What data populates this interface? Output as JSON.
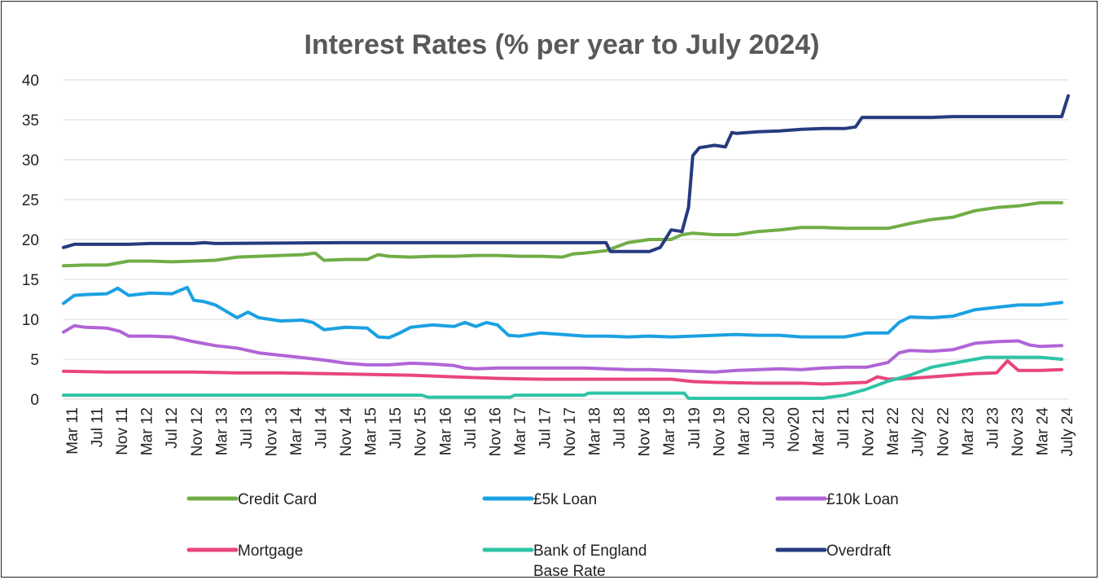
{
  "chart_data": {
    "type": "line",
    "title": "Interest Rates (% per year to July 2024)",
    "xlabel": "",
    "ylabel": "",
    "ylim": [
      0,
      40
    ],
    "yticks": [
      0,
      5,
      10,
      15,
      20,
      25,
      30,
      35,
      40
    ],
    "grid": true,
    "legend_position": "bottom",
    "x_tick_labels": [
      "Mar 11",
      "Jul 11",
      "Nov 11",
      "Mar 12",
      "Jul 12",
      "Nov 12",
      "Mar 13",
      "Jul 13",
      "Nov 13",
      "Mar 14",
      "Jul 14",
      "Nov 14",
      "Mar 15",
      "Jul 15",
      "Nov 15",
      "Mar 16",
      "Jul 16",
      "Nov 16",
      "Mar 17",
      "Jul 17",
      "Nov 17",
      "Mar 18",
      "Jul 18",
      "Nov 18",
      "Mar 19",
      "Jul 19",
      "Nov 19",
      "Mar 20",
      "Jul 20",
      "Nov20",
      "Mar 21",
      "Jul 21",
      "Nov 21",
      "Mar 22",
      "July 22",
      "Nov 22",
      "Mar 23",
      "Jul 23",
      "Nov 23",
      "Mar 24",
      "July 24"
    ],
    "series": [
      {
        "name": "Credit Card",
        "color": "#70AD47",
        "points": [
          [
            0,
            16.7
          ],
          [
            1,
            16.8
          ],
          [
            2,
            16.8
          ],
          [
            3,
            17.3
          ],
          [
            4,
            17.3
          ],
          [
            5,
            17.2
          ],
          [
            6,
            17.3
          ],
          [
            7,
            17.4
          ],
          [
            8,
            17.8
          ],
          [
            9,
            17.9
          ],
          [
            10,
            18.0
          ],
          [
            11,
            18.1
          ],
          [
            11.6,
            18.3
          ],
          [
            12,
            17.4
          ],
          [
            13,
            17.5
          ],
          [
            14,
            17.5
          ],
          [
            14.5,
            18.1
          ],
          [
            15,
            17.9
          ],
          [
            16,
            17.8
          ],
          [
            17,
            17.9
          ],
          [
            18,
            17.9
          ],
          [
            19,
            18.0
          ],
          [
            20,
            18.0
          ],
          [
            21,
            17.9
          ],
          [
            22,
            17.9
          ],
          [
            23,
            17.8
          ],
          [
            23.5,
            18.2
          ],
          [
            24,
            18.3
          ],
          [
            25,
            18.6
          ],
          [
            26,
            19.6
          ],
          [
            27,
            20.0
          ],
          [
            28,
            20.0
          ],
          [
            28.5,
            20.6
          ],
          [
            29,
            20.8
          ],
          [
            30,
            20.6
          ],
          [
            31,
            20.6
          ],
          [
            32,
            21.0
          ],
          [
            33,
            21.2
          ],
          [
            34,
            21.5
          ],
          [
            35,
            21.5
          ],
          [
            36,
            21.4
          ],
          [
            37,
            21.4
          ],
          [
            38,
            21.4
          ],
          [
            39,
            22.0
          ],
          [
            40,
            22.5
          ],
          [
            41,
            22.8
          ],
          [
            42,
            23.6
          ],
          [
            43,
            24.0
          ],
          [
            44,
            24.2
          ],
          [
            45,
            24.6
          ],
          [
            46,
            24.6
          ]
        ]
      },
      {
        "name": "£5k Loan",
        "color": "#1BA1E2",
        "points": [
          [
            0,
            12.0
          ],
          [
            0.5,
            13.0
          ],
          [
            1,
            13.1
          ],
          [
            2,
            13.2
          ],
          [
            2.5,
            13.9
          ],
          [
            3,
            13.0
          ],
          [
            4,
            13.3
          ],
          [
            5,
            13.2
          ],
          [
            5.7,
            14.0
          ],
          [
            6,
            12.4
          ],
          [
            6.5,
            12.2
          ],
          [
            7,
            11.8
          ],
          [
            7.5,
            11.0
          ],
          [
            8,
            10.2
          ],
          [
            8.5,
            10.9
          ],
          [
            9,
            10.2
          ],
          [
            10,
            9.8
          ],
          [
            11,
            9.9
          ],
          [
            11.5,
            9.6
          ],
          [
            12,
            8.7
          ],
          [
            13,
            9.0
          ],
          [
            14,
            8.9
          ],
          [
            14.5,
            7.8
          ],
          [
            15,
            7.7
          ],
          [
            15.5,
            8.3
          ],
          [
            16,
            9.0
          ],
          [
            17,
            9.3
          ],
          [
            18,
            9.1
          ],
          [
            18.5,
            9.6
          ],
          [
            19,
            9.1
          ],
          [
            19.5,
            9.6
          ],
          [
            20,
            9.3
          ],
          [
            20.5,
            8.0
          ],
          [
            21,
            7.9
          ],
          [
            22,
            8.3
          ],
          [
            23,
            8.1
          ],
          [
            24,
            7.9
          ],
          [
            25,
            7.9
          ],
          [
            26,
            7.8
          ],
          [
            27,
            7.9
          ],
          [
            28,
            7.8
          ],
          [
            29,
            7.9
          ],
          [
            30,
            8.0
          ],
          [
            31,
            8.1
          ],
          [
            32,
            8.0
          ],
          [
            33,
            8.0
          ],
          [
            34,
            7.8
          ],
          [
            35,
            7.8
          ],
          [
            36,
            7.8
          ],
          [
            37,
            8.3
          ],
          [
            38,
            8.3
          ],
          [
            38.5,
            9.6
          ],
          [
            39,
            10.3
          ],
          [
            40,
            10.2
          ],
          [
            41,
            10.4
          ],
          [
            42,
            11.2
          ],
          [
            43,
            11.5
          ],
          [
            44,
            11.8
          ],
          [
            45,
            11.8
          ],
          [
            46,
            12.1
          ]
        ]
      },
      {
        "name": "£10k Loan",
        "color": "#B065D6",
        "points": [
          [
            0,
            8.4
          ],
          [
            0.5,
            9.2
          ],
          [
            1,
            9.0
          ],
          [
            2,
            8.9
          ],
          [
            2.6,
            8.5
          ],
          [
            3,
            7.9
          ],
          [
            4,
            7.9
          ],
          [
            5,
            7.8
          ],
          [
            5.5,
            7.5
          ],
          [
            6,
            7.2
          ],
          [
            7,
            6.7
          ],
          [
            8,
            6.4
          ],
          [
            8.5,
            6.1
          ],
          [
            9,
            5.8
          ],
          [
            10,
            5.5
          ],
          [
            11,
            5.2
          ],
          [
            12,
            4.9
          ],
          [
            13,
            4.5
          ],
          [
            14,
            4.3
          ],
          [
            15,
            4.3
          ],
          [
            16,
            4.5
          ],
          [
            17,
            4.4
          ],
          [
            18,
            4.2
          ],
          [
            18.5,
            3.9
          ],
          [
            19,
            3.8
          ],
          [
            20,
            3.9
          ],
          [
            21,
            3.9
          ],
          [
            22,
            3.9
          ],
          [
            23,
            3.9
          ],
          [
            24,
            3.9
          ],
          [
            25,
            3.8
          ],
          [
            26,
            3.7
          ],
          [
            27,
            3.7
          ],
          [
            28,
            3.6
          ],
          [
            29,
            3.5
          ],
          [
            30,
            3.4
          ],
          [
            31,
            3.6
          ],
          [
            32,
            3.7
          ],
          [
            33,
            3.8
          ],
          [
            34,
            3.7
          ],
          [
            35,
            3.9
          ],
          [
            36,
            4.0
          ],
          [
            37,
            4.0
          ],
          [
            38,
            4.6
          ],
          [
            38.5,
            5.8
          ],
          [
            39,
            6.1
          ],
          [
            40,
            6.0
          ],
          [
            41,
            6.2
          ],
          [
            42,
            7.0
          ],
          [
            43,
            7.2
          ],
          [
            44,
            7.3
          ],
          [
            44.5,
            6.8
          ],
          [
            45,
            6.6
          ],
          [
            46,
            6.7
          ]
        ]
      },
      {
        "name": "Mortgage",
        "color": "#E8467C",
        "points": [
          [
            0,
            3.5
          ],
          [
            2,
            3.4
          ],
          [
            4,
            3.4
          ],
          [
            6,
            3.4
          ],
          [
            8,
            3.3
          ],
          [
            10,
            3.3
          ],
          [
            12,
            3.2
          ],
          [
            14,
            3.1
          ],
          [
            16,
            3.0
          ],
          [
            18,
            2.8
          ],
          [
            20,
            2.6
          ],
          [
            22,
            2.5
          ],
          [
            24,
            2.5
          ],
          [
            26,
            2.5
          ],
          [
            28,
            2.5
          ],
          [
            29,
            2.2
          ],
          [
            30,
            2.1
          ],
          [
            32,
            2.0
          ],
          [
            34,
            2.0
          ],
          [
            35,
            1.9
          ],
          [
            36,
            2.0
          ],
          [
            37,
            2.1
          ],
          [
            37.5,
            2.8
          ],
          [
            38,
            2.5
          ],
          [
            39,
            2.6
          ],
          [
            40,
            2.8
          ],
          [
            41,
            3.0
          ],
          [
            42,
            3.2
          ],
          [
            43,
            3.3
          ],
          [
            43.5,
            4.8
          ],
          [
            44,
            3.6
          ],
          [
            45,
            3.6
          ],
          [
            46,
            3.7
          ]
        ]
      },
      {
        "name": "Bank of England Base Rate",
        "color": "#2EC4A6",
        "points": [
          [
            0,
            0.5
          ],
          [
            16.5,
            0.5
          ],
          [
            16.8,
            0.25
          ],
          [
            20.6,
            0.25
          ],
          [
            20.8,
            0.5
          ],
          [
            24,
            0.5
          ],
          [
            24.2,
            0.75
          ],
          [
            28.6,
            0.75
          ],
          [
            28.8,
            0.1
          ],
          [
            35,
            0.1
          ],
          [
            35.3,
            0.25
          ],
          [
            36,
            0.5
          ],
          [
            37,
            1.25
          ],
          [
            38,
            2.25
          ],
          [
            39,
            3.0
          ],
          [
            40,
            4.0
          ],
          [
            41,
            4.5
          ],
          [
            42,
            5.0
          ],
          [
            42.5,
            5.25
          ],
          [
            45,
            5.25
          ],
          [
            46,
            5.0
          ]
        ]
      },
      {
        "name": "Overdraft",
        "color": "#263B80",
        "points": [
          [
            0,
            19.0
          ],
          [
            0.5,
            19.4
          ],
          [
            3,
            19.4
          ],
          [
            4,
            19.5
          ],
          [
            6,
            19.5
          ],
          [
            6.5,
            19.6
          ],
          [
            7,
            19.5
          ],
          [
            13,
            19.6
          ],
          [
            24,
            19.6
          ],
          [
            25,
            19.6
          ],
          [
            25.2,
            18.5
          ],
          [
            27,
            18.5
          ],
          [
            27.5,
            19.0
          ],
          [
            28,
            21.2
          ],
          [
            28.5,
            21.0
          ],
          [
            28.8,
            24.0
          ],
          [
            29,
            30.5
          ],
          [
            29.3,
            31.5
          ],
          [
            30,
            31.8
          ],
          [
            30.5,
            31.6
          ],
          [
            30.8,
            33.4
          ],
          [
            31,
            33.3
          ],
          [
            32,
            33.5
          ],
          [
            33,
            33.6
          ],
          [
            34,
            33.8
          ],
          [
            35,
            33.9
          ],
          [
            36,
            33.9
          ],
          [
            36.5,
            34.1
          ],
          [
            36.8,
            35.3
          ],
          [
            37,
            35.3
          ],
          [
            38,
            35.3
          ],
          [
            39,
            35.3
          ],
          [
            40,
            35.3
          ],
          [
            41,
            35.4
          ],
          [
            42,
            35.4
          ],
          [
            46,
            35.4
          ],
          [
            46.3,
            38.0
          ]
        ]
      }
    ]
  },
  "legend": {
    "items": [
      {
        "name": "Credit Card",
        "line2": ""
      },
      {
        "name": "£5k Loan",
        "line2": ""
      },
      {
        "name": "£10k Loan",
        "line2": ""
      },
      {
        "name": "Mortgage",
        "line2": ""
      },
      {
        "name": "Bank of England",
        "line2": "Base Rate"
      },
      {
        "name": "Overdraft",
        "line2": ""
      }
    ]
  }
}
